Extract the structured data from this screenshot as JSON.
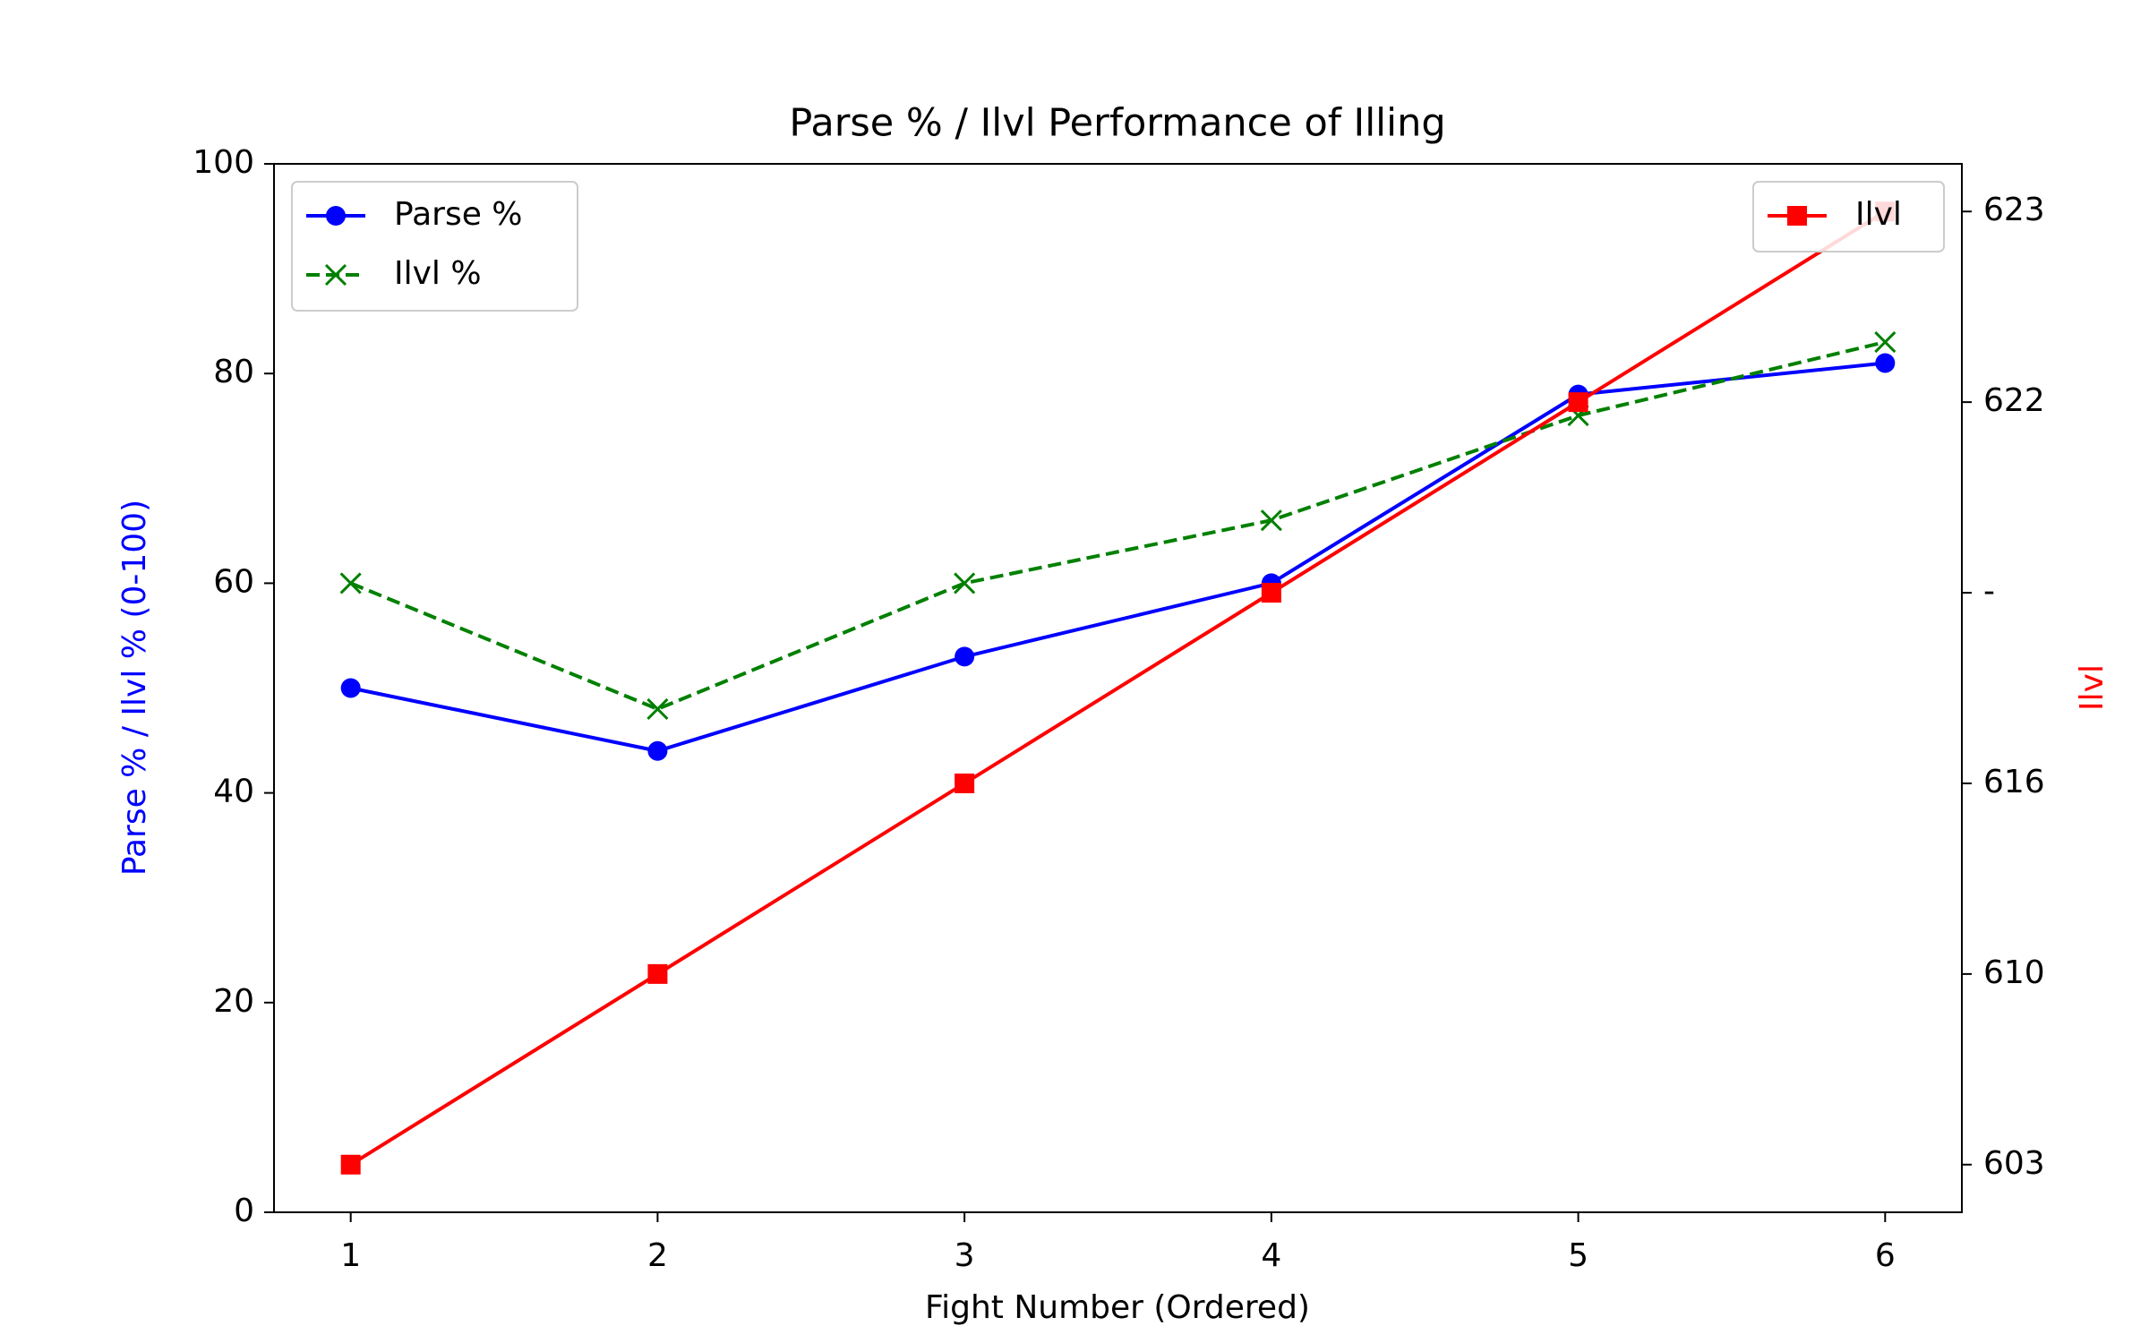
{
  "chart_data": {
    "type": "line",
    "title": "Parse % / Ilvl Performance of Illing",
    "xlabel": "Fight Number (Ordered)",
    "ylabel": "Parse % / Ilvl % (0-100)",
    "ylabel_color": "#0000ff",
    "y2label": "Ilvl",
    "y2label_color": "#ff0000",
    "x": [
      1,
      2,
      3,
      4,
      5,
      6
    ],
    "xlim": [
      0.75,
      6.25
    ],
    "xticks": [
      1,
      2,
      3,
      4,
      5,
      6
    ],
    "ylim": [
      0,
      100
    ],
    "yticks": [
      0,
      20,
      40,
      60,
      80,
      100
    ],
    "y2categories": [
      "603",
      "610",
      "616",
      "-",
      "622",
      "623"
    ],
    "series": [
      {
        "name": "Parse %",
        "color": "#0000ff",
        "marker": "circle",
        "linestyle": "solid",
        "values": [
          50,
          44,
          53,
          60,
          78,
          81
        ]
      },
      {
        "name": "Ilvl %",
        "color": "#008000",
        "marker": "x",
        "linestyle": "dashed",
        "values": [
          60,
          48,
          60,
          66,
          76,
          83
        ]
      },
      {
        "name": "Ilvl",
        "color": "#ff0000",
        "marker": "square",
        "linestyle": "solid",
        "axis": "y2",
        "values": [
          "603",
          "610",
          "616",
          "-",
          "622",
          "623"
        ]
      }
    ],
    "legend": "upper left",
    "legend2": "upper right",
    "grid": false
  }
}
